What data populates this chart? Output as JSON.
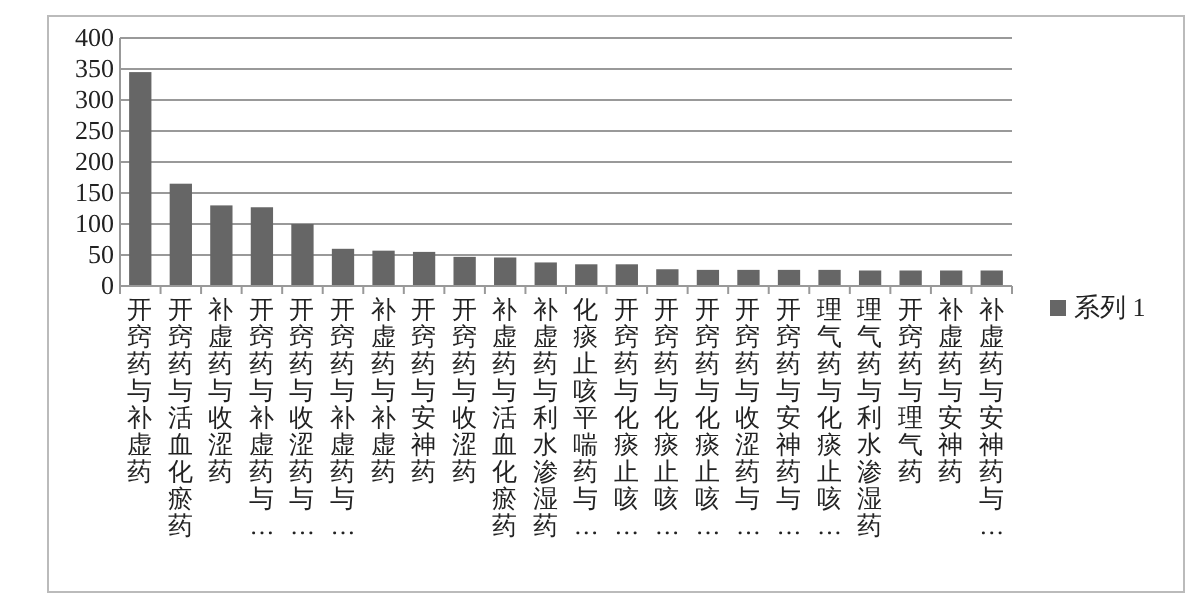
{
  "chart_data": {
    "type": "bar",
    "categories": [
      "开窍药与补虚药",
      "开窍药与活血化瘀药",
      "补虚药与收涩药",
      "开窍药与补虚药与…",
      "开窍药与收涩药与…",
      "开窍药与补虚药与…",
      "补虚药与补虚药",
      "开窍药与安神药",
      "开窍药与收涩药",
      "补虚药与活血化瘀药",
      "补虚药与利水渗湿药",
      "化痰止咳平喘药与…",
      "开窍药与化痰止咳…",
      "开窍药与化痰止咳…",
      "开窍药与化痰止咳…",
      "开窍药与收涩药与…",
      "开窍药与安神药与…",
      "理气药与化痰止咳…",
      "理气药与利水渗湿药",
      "开窍药与理气药",
      "补虚药与安神药",
      "补虚药与安神药与…"
    ],
    "series": [
      {
        "name": "系列 1",
        "color": "#666666",
        "values": [
          345,
          165,
          130,
          127,
          100,
          60,
          57,
          55,
          47,
          46,
          38,
          35,
          35,
          27,
          26,
          26,
          26,
          26,
          25,
          25,
          25,
          25
        ]
      }
    ],
    "ylim": [
      0,
      400
    ],
    "yticks": [
      0,
      50,
      100,
      150,
      200,
      250,
      300,
      350,
      400
    ],
    "grid": "y",
    "legend": "right"
  }
}
